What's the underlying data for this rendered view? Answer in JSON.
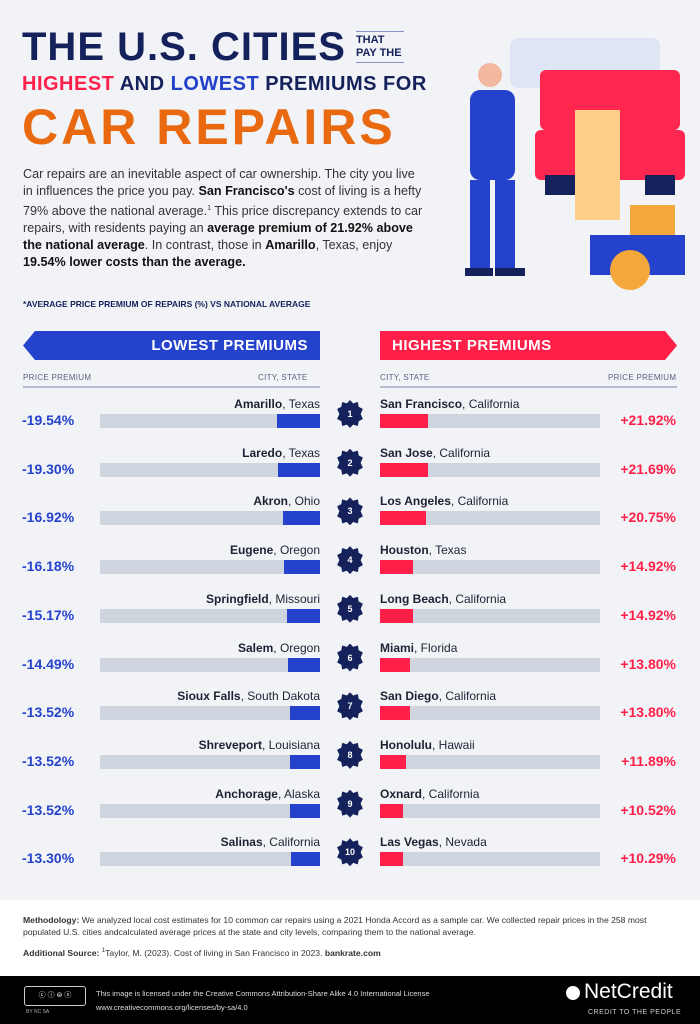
{
  "title": {
    "line1": "THE U.S. CITIES",
    "small": "THAT PAY THE",
    "highest": "HIGHEST",
    "and": " AND ",
    "lowest": "LOWEST",
    "rest": " PREMIUMS FOR",
    "line3": "CAR REPAIRS"
  },
  "intro": {
    "p1": "Car repairs are an inevitable aspect of car ownership. The city you live in influences the price you pay. ",
    "b1": "San Francisco's",
    "p2": " cost of living is a hefty 79% above the national average.",
    "sup": "1",
    "p3": " This price discrepancy extends to car repairs, with residents paying an ",
    "b2": "average premium of 21.92% above the national average",
    "p4": ". In contrast, those in ",
    "b3": "Amarillo",
    "p5": ", Texas, enjoy ",
    "b4": "19.54% lower costs than the average."
  },
  "note": "*AVERAGE PRICE PREMIUM OF REPAIRS (%) VS NATIONAL AVERAGE",
  "colors": {
    "low": "#2442cc",
    "high": "#ff1f48",
    "navy": "#14215a",
    "orange": "#e8690f"
  },
  "chart_data": [
    {
      "type": "bar",
      "title": "LOWEST PREMIUMS",
      "xlabel": "PRICE PREMIUM",
      "ylabel": "CITY, STATE",
      "xlim": [
        -100,
        0
      ],
      "categories": [
        {
          "city": "Amarillo",
          "state": ", Texas"
        },
        {
          "city": "Laredo",
          "state": ", Texas"
        },
        {
          "city": "Akron",
          "state": ", Ohio"
        },
        {
          "city": "Eugene",
          "state": ", Oregon"
        },
        {
          "city": "Springfield",
          "state": ", Missouri"
        },
        {
          "city": "Salem",
          "state": ", Oregon"
        },
        {
          "city": "Sioux Falls",
          "state": ", South Dakota"
        },
        {
          "city": "Shreveport",
          "state": ", Louisiana"
        },
        {
          "city": "Anchorage",
          "state": ", Alaska"
        },
        {
          "city": "Salinas",
          "state": ", California"
        }
      ],
      "values": [
        -19.54,
        -19.3,
        -16.92,
        -16.18,
        -15.17,
        -14.49,
        -13.52,
        -13.52,
        -13.52,
        -13.3
      ],
      "labels": [
        "-19.54%",
        "-19.30%",
        "-16.92%",
        "-16.18%",
        "-15.17%",
        "-14.49%",
        "-13.52%",
        "-13.52%",
        "-13.52%",
        "-13.30%"
      ]
    },
    {
      "type": "bar",
      "title": "HIGHEST PREMIUMS",
      "xlabel": "PRICE PREMIUM",
      "ylabel": "CITY, STATE",
      "xlim": [
        0,
        100
      ],
      "categories": [
        {
          "city": "San Francisco",
          "state": ", California"
        },
        {
          "city": "San Jose",
          "state": ", California"
        },
        {
          "city": "Los Angeles",
          "state": ", California"
        },
        {
          "city": "Houston",
          "state": ", Texas"
        },
        {
          "city": "Long Beach",
          "state": ", California"
        },
        {
          "city": "Miami",
          "state": ", Florida"
        },
        {
          "city": "San Diego",
          "state": ", California"
        },
        {
          "city": "Honolulu",
          "state": ", Hawaii"
        },
        {
          "city": "Oxnard",
          "state": ", California"
        },
        {
          "city": "Las Vegas",
          "state": ", Nevada"
        }
      ],
      "values": [
        21.92,
        21.69,
        20.75,
        14.92,
        14.92,
        13.8,
        13.8,
        11.89,
        10.52,
        10.29
      ],
      "labels": [
        "+21.92%",
        "+21.69%",
        "+20.75%",
        "+14.92%",
        "+14.92%",
        "+13.80%",
        "+13.80%",
        "+11.89%",
        "+10.52%",
        "+10.29%"
      ]
    }
  ],
  "ranks": [
    "1",
    "2",
    "3",
    "4",
    "5",
    "6",
    "7",
    "8",
    "9",
    "10"
  ],
  "methodology": {
    "label": "Methodology:",
    "text": " We analyzed local cost estimates for 10 common car repairs using a 2021 Honda Accord as a sample car. We collected repair prices in the 258 most populated U.S. cities andcalculated average prices at the state and city levels, comparing them to the national average."
  },
  "source": {
    "label": "Additional Source:",
    "sup": "1",
    "text": "Taylor, M. (2023). Cost of living in San Francisco in 2023. ",
    "link": "bankrate.com"
  },
  "license": {
    "badge": "BY NC SA",
    "line1": "This image is licensed under the Creative Commons Attribution-Share Alike 4.0 International License",
    "line2": "www.creativecommons.org/licenses/by-sa/4.0"
  },
  "brand": {
    "name": "NetCredit",
    "tagline": "CREDIT TO THE PEOPLE"
  }
}
